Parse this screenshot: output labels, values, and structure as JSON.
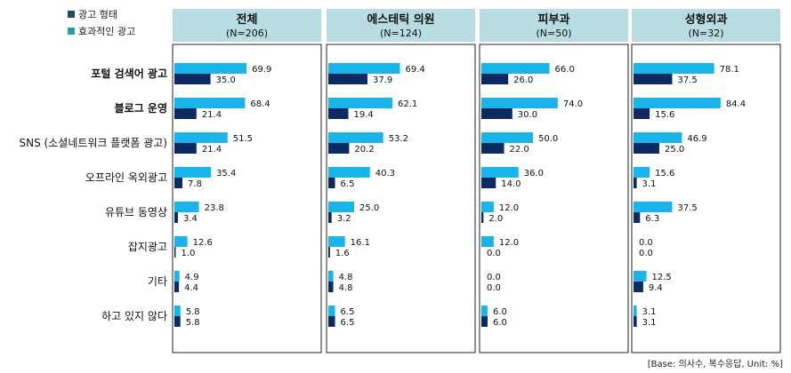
{
  "legend": [
    {
      "label": "광고 형태",
      "color": "#1f4e5a"
    },
    {
      "label": "효과적인 광고",
      "color": "#2aa0a6"
    }
  ],
  "note": "[Base: 의사수, 복수응답, Unit: %]",
  "colors": {
    "series_light": "#19b4ea",
    "series_dark": "#0d2b62",
    "header_bg": "#b7dde3"
  },
  "chart_data": {
    "type": "bar",
    "orientation": "horizontal",
    "categories": [
      "포털 검색어 광고",
      "블로그 운영",
      "SNS (소셜네트워크 플랫폼 광고)",
      "오프라인 옥외광고",
      "유튜브 동영상",
      "잡지광고",
      "기타",
      "하고 있지 않다"
    ],
    "bold_categories": [
      "포털 검색어 광고",
      "블로그 운영"
    ],
    "panels": [
      {
        "title": "전체",
        "n": "(N=206)",
        "series": [
          {
            "values": [
              69.9,
              68.4,
              51.5,
              35.4,
              23.8,
              12.6,
              4.9,
              5.8
            ]
          },
          {
            "values": [
              35.0,
              21.4,
              21.4,
              7.8,
              3.4,
              1.0,
              4.4,
              5.8
            ]
          }
        ]
      },
      {
        "title": "에스테틱 의원",
        "n": "(N=124)",
        "series": [
          {
            "values": [
              69.4,
              62.1,
              53.2,
              40.3,
              25.0,
              16.1,
              4.8,
              6.5
            ]
          },
          {
            "values": [
              37.9,
              19.4,
              20.2,
              6.5,
              3.2,
              1.6,
              4.8,
              6.5
            ]
          }
        ]
      },
      {
        "title": "피부과",
        "n": "(N=50)",
        "series": [
          {
            "values": [
              66.0,
              74.0,
              50.0,
              36.0,
              12.0,
              12.0,
              0.0,
              6.0
            ]
          },
          {
            "values": [
              26.0,
              30.0,
              22.0,
              14.0,
              2.0,
              0.0,
              0.0,
              6.0
            ]
          }
        ]
      },
      {
        "title": "성형외과",
        "n": "(N=32)",
        "series": [
          {
            "values": [
              78.1,
              84.4,
              46.9,
              15.6,
              37.5,
              0.0,
              12.5,
              3.1
            ]
          },
          {
            "values": [
              37.5,
              15.6,
              25.0,
              3.1,
              6.3,
              0.0,
              9.4,
              3.1
            ]
          }
        ]
      }
    ],
    "xlim": [
      0,
      100
    ],
    "grid": false
  }
}
